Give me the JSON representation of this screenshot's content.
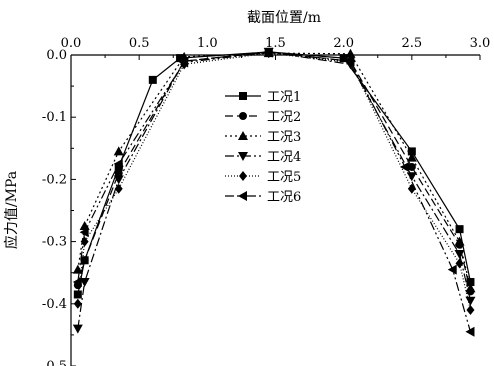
{
  "chart_data": {
    "type": "line",
    "title": "",
    "xlabel": "截面位置/m",
    "ylabel": "应力值/MPa",
    "xlim": [
      0.0,
      3.0
    ],
    "ylim": [
      -0.5,
      0.0
    ],
    "x_axis_position": "top",
    "x_ticks": [
      0.0,
      0.5,
      1.0,
      1.5,
      2.0,
      2.5,
      3.0
    ],
    "x_tick_labels": [
      "0.0",
      "0.5",
      "1.0",
      "1.5",
      "2.0",
      "2.5",
      "3.0"
    ],
    "y_ticks": [
      0.0,
      -0.1,
      -0.2,
      -0.3,
      -0.4,
      -0.5
    ],
    "y_tick_labels": [
      "0.0",
      "-0.1",
      "-0.2",
      "-0.3",
      "-0.4",
      "-0.5"
    ],
    "grid": false,
    "legend_position": "center",
    "series": [
      {
        "name": "工况1",
        "marker": "square",
        "dash": "solid",
        "points": [
          [
            0.05,
            -0.385
          ],
          [
            0.1,
            -0.33
          ],
          [
            0.35,
            -0.18
          ],
          [
            0.6,
            -0.04
          ],
          [
            0.8,
            -0.005
          ],
          [
            1.45,
            0.005
          ],
          [
            2.0,
            -0.005
          ],
          [
            2.5,
            -0.155
          ],
          [
            2.85,
            -0.28
          ],
          [
            2.93,
            -0.365
          ]
        ]
      },
      {
        "name": "工况2",
        "marker": "circle",
        "dash": "8,4",
        "points": [
          [
            0.05,
            -0.37
          ],
          [
            0.1,
            -0.33
          ],
          [
            0.35,
            -0.19
          ],
          [
            0.83,
            -0.01
          ],
          [
            1.45,
            0.005
          ],
          [
            2.05,
            -0.01
          ],
          [
            2.5,
            -0.18
          ],
          [
            2.85,
            -0.305
          ],
          [
            2.93,
            -0.38
          ]
        ]
      },
      {
        "name": "工况3",
        "marker": "triangle-up",
        "dash": "2,3",
        "points": [
          [
            0.05,
            -0.345
          ],
          [
            0.1,
            -0.275
          ],
          [
            0.35,
            -0.155
          ],
          [
            0.83,
            -0.003
          ],
          [
            1.45,
            0.003
          ],
          [
            2.05,
            0.002
          ],
          [
            2.5,
            -0.165
          ],
          [
            2.85,
            -0.3
          ],
          [
            2.93,
            -0.375
          ]
        ]
      },
      {
        "name": "工况4",
        "marker": "triangle-down",
        "dash": "9,3,2,3",
        "points": [
          [
            0.05,
            -0.44
          ],
          [
            0.1,
            -0.365
          ],
          [
            0.35,
            -0.2
          ],
          [
            0.83,
            -0.01
          ],
          [
            1.45,
            0.005
          ],
          [
            2.05,
            -0.015
          ],
          [
            2.5,
            -0.195
          ],
          [
            2.85,
            -0.32
          ],
          [
            2.93,
            -0.395
          ]
        ]
      },
      {
        "name": "工况5",
        "marker": "diamond",
        "dash": "1,2",
        "points": [
          [
            0.05,
            -0.4
          ],
          [
            0.1,
            -0.3
          ],
          [
            0.35,
            -0.215
          ],
          [
            0.83,
            -0.015
          ],
          [
            1.45,
            0.003
          ],
          [
            2.05,
            -0.012
          ],
          [
            2.5,
            -0.215
          ],
          [
            2.85,
            -0.335
          ],
          [
            2.93,
            -0.41
          ]
        ]
      },
      {
        "name": "工况6",
        "marker": "triangle-left",
        "dash": "9,3,2,3,2,3",
        "points": [
          [
            0.05,
            -0.365
          ],
          [
            0.1,
            -0.285
          ],
          [
            0.35,
            -0.175
          ],
          [
            0.83,
            -0.012
          ],
          [
            1.45,
            0.004
          ],
          [
            2.05,
            -0.01
          ],
          [
            2.45,
            -0.18
          ],
          [
            2.8,
            -0.345
          ],
          [
            2.93,
            -0.445
          ]
        ]
      }
    ]
  }
}
